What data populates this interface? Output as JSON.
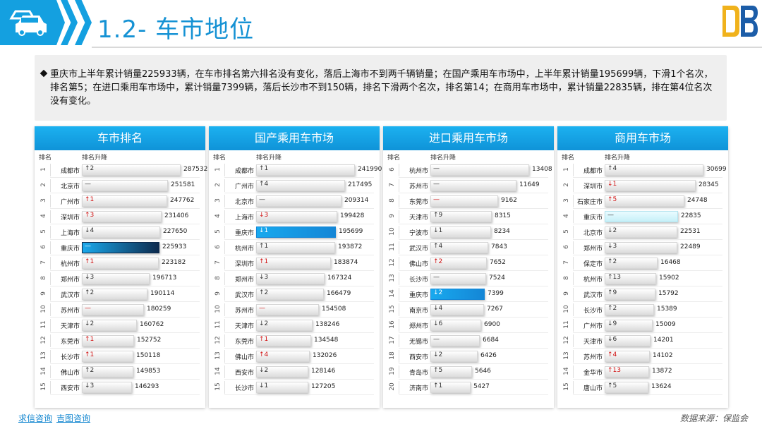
{
  "header": {
    "title": "1.2- 车市地位"
  },
  "summary": "重庆市上半年累计销量225933辆，在车市排名第六排名没有变化，落后上海市不到两千辆销量；在国产乘用车市场中，上半年累计销量195699辆，下滑1个名次，排名第5；在进口乘用车市场中，累计销量7399辆，落后长沙市不到150辆，排名下滑两个名次，排名第14；在商用车市场中，累计销量22835辆，排在第4位名次没有变化。",
  "panels": [
    {
      "title": "车市排名",
      "col_rank": "排名",
      "col_change": "排名升降",
      "max": 287532,
      "rows": [
        {
          "rank": "1",
          "city": "成都市",
          "change": "↑2",
          "dir": "down",
          "value": 287532
        },
        {
          "rank": "2",
          "city": "北京市",
          "change": "—",
          "dir": "flat",
          "value": 251581
        },
        {
          "rank": "3",
          "city": "广州市",
          "change": "↑1",
          "dir": "up",
          "value": 247762
        },
        {
          "rank": "4",
          "city": "深圳市",
          "change": "↑3",
          "dir": "up",
          "value": 231406
        },
        {
          "rank": "5",
          "city": "上海市",
          "change": "↓4",
          "dir": "down",
          "value": 227650
        },
        {
          "rank": "6",
          "city": "重庆市",
          "change": "—",
          "dir": "flat",
          "value": 225933,
          "hl": "dark"
        },
        {
          "rank": "7",
          "city": "杭州市",
          "change": "↑1",
          "dir": "up",
          "value": 223182
        },
        {
          "rank": "8",
          "city": "郑州市",
          "change": "↓3",
          "dir": "down",
          "value": 196713
        },
        {
          "rank": "9",
          "city": "武汉市",
          "change": "↑2",
          "dir": "down",
          "value": 190114
        },
        {
          "rank": "10",
          "city": "苏州市",
          "change": "—",
          "dir": "up",
          "value": 180259
        },
        {
          "rank": "11",
          "city": "天津市",
          "change": "↓2",
          "dir": "down",
          "value": 160762
        },
        {
          "rank": "12",
          "city": "东莞市",
          "change": "↑1",
          "dir": "up",
          "value": 152752
        },
        {
          "rank": "13",
          "city": "长沙市",
          "change": "↑1",
          "dir": "up",
          "value": 150118
        },
        {
          "rank": "14",
          "city": "佛山市",
          "change": "↑2",
          "dir": "down",
          "value": 149853
        },
        {
          "rank": "15",
          "city": "西安市",
          "change": "↓3",
          "dir": "down",
          "value": 146293
        }
      ]
    },
    {
      "title": "国产乘用车市场",
      "col_rank": "排名",
      "col_change": "排名升降",
      "max": 241990,
      "rows": [
        {
          "rank": "1",
          "city": "成都市",
          "change": "↑1",
          "dir": "down",
          "value": 241990
        },
        {
          "rank": "2",
          "city": "广州市",
          "change": "↑4",
          "dir": "down",
          "value": 217495
        },
        {
          "rank": "3",
          "city": "北京市",
          "change": "—",
          "dir": "flat",
          "value": 209314
        },
        {
          "rank": "4",
          "city": "上海市",
          "change": "↓3",
          "dir": "up",
          "value": 199428
        },
        {
          "rank": "5",
          "city": "重庆市",
          "change": "↓1",
          "dir": "flat",
          "value": 195699,
          "hl": "blue"
        },
        {
          "rank": "6",
          "city": "杭州市",
          "change": "↑1",
          "dir": "down",
          "value": 193872
        },
        {
          "rank": "7",
          "city": "深圳市",
          "change": "↑1",
          "dir": "up",
          "value": 183874
        },
        {
          "rank": "8",
          "city": "郑州市",
          "change": "↓3",
          "dir": "down",
          "value": 167324
        },
        {
          "rank": "9",
          "city": "武汉市",
          "change": "↑2",
          "dir": "down",
          "value": 166479
        },
        {
          "rank": "10",
          "city": "苏州市",
          "change": "—",
          "dir": "up",
          "value": 154508
        },
        {
          "rank": "11",
          "city": "天津市",
          "change": "↓2",
          "dir": "down",
          "value": 138246
        },
        {
          "rank": "12",
          "city": "东莞市",
          "change": "↑1",
          "dir": "up",
          "value": 134548
        },
        {
          "rank": "13",
          "city": "佛山市",
          "change": "↑4",
          "dir": "up",
          "value": 132026
        },
        {
          "rank": "14",
          "city": "西安市",
          "change": "↓2",
          "dir": "down",
          "value": 128146
        },
        {
          "rank": "15",
          "city": "长沙市",
          "change": "↓1",
          "dir": "down",
          "value": 127205
        }
      ]
    },
    {
      "title": "进口乘用车市场",
      "col_rank": "排名",
      "col_change": "排名升降",
      "max": 13408,
      "rows": [
        {
          "rank": "6",
          "city": "杭州市",
          "change": "—",
          "dir": "flat",
          "value": 13408
        },
        {
          "rank": "7",
          "city": "苏州市",
          "change": "—",
          "dir": "flat",
          "value": 11649
        },
        {
          "rank": "8",
          "city": "东莞市",
          "change": "—",
          "dir": "up",
          "value": 9162
        },
        {
          "rank": "9",
          "city": "天津市",
          "change": "↑9",
          "dir": "down",
          "value": 8315
        },
        {
          "rank": "10",
          "city": "宁波市",
          "change": "↓1",
          "dir": "down",
          "value": 8234
        },
        {
          "rank": "11",
          "city": "武汉市",
          "change": "↑4",
          "dir": "down",
          "value": 7843
        },
        {
          "rank": "12",
          "city": "佛山市",
          "change": "↑2",
          "dir": "up",
          "value": 7652
        },
        {
          "rank": "13",
          "city": "长沙市",
          "change": "—",
          "dir": "flat",
          "value": 7524
        },
        {
          "rank": "14",
          "city": "重庆市",
          "change": "↓2",
          "dir": "up",
          "value": 7399,
          "hl": "blue"
        },
        {
          "rank": "15",
          "city": "南京市",
          "change": "↓4",
          "dir": "down",
          "value": 7267
        },
        {
          "rank": "16",
          "city": "郑州市",
          "change": "↓6",
          "dir": "down",
          "value": 6900
        },
        {
          "rank": "17",
          "city": "无锡市",
          "change": "—",
          "dir": "flat",
          "value": 6684
        },
        {
          "rank": "18",
          "city": "西安市",
          "change": "↓2",
          "dir": "down",
          "value": 6426
        },
        {
          "rank": "19",
          "city": "青岛市",
          "change": "↑5",
          "dir": "down",
          "value": 5646
        },
        {
          "rank": "20",
          "city": "济南市",
          "change": "↑1",
          "dir": "down",
          "value": 5427
        }
      ]
    },
    {
      "title": "商用车市场",
      "col_rank": "排名",
      "col_change": "排名升降",
      "max": 30699,
      "rows": [
        {
          "rank": "1",
          "city": "成都市",
          "change": "↑4",
          "dir": "down",
          "value": 30699
        },
        {
          "rank": "2",
          "city": "深圳市",
          "change": "↓1",
          "dir": "up",
          "value": 28345
        },
        {
          "rank": "3",
          "city": "石家庄市",
          "change": "↑5",
          "dir": "up",
          "value": 24748
        },
        {
          "rank": "4",
          "city": "重庆市",
          "change": "—",
          "dir": "flat",
          "value": 22835,
          "hl": "light"
        },
        {
          "rank": "5",
          "city": "北京市",
          "change": "↓2",
          "dir": "down",
          "value": 22531
        },
        {
          "rank": "6",
          "city": "郑州市",
          "change": "↓3",
          "dir": "down",
          "value": 22489
        },
        {
          "rank": "7",
          "city": "保定市",
          "change": "↑2",
          "dir": "down",
          "value": 16468
        },
        {
          "rank": "8",
          "city": "杭州市",
          "change": "↑13",
          "dir": "down",
          "value": 15902
        },
        {
          "rank": "9",
          "city": "武汉市",
          "change": "↑9",
          "dir": "down",
          "value": 15792
        },
        {
          "rank": "10",
          "city": "长沙市",
          "change": "↑2",
          "dir": "down",
          "value": 15389
        },
        {
          "rank": "11",
          "city": "广州市",
          "change": "↓9",
          "dir": "down",
          "value": 15009
        },
        {
          "rank": "12",
          "city": "天津市",
          "change": "↓6",
          "dir": "down",
          "value": 14201
        },
        {
          "rank": "13",
          "city": "苏州市",
          "change": "↑4",
          "dir": "up",
          "value": 14102
        },
        {
          "rank": "14",
          "city": "金华市",
          "change": "↑13",
          "dir": "up",
          "value": 13872
        },
        {
          "rank": "15",
          "city": "唐山市",
          "change": "↑5",
          "dir": "down",
          "value": 13624
        }
      ]
    }
  ],
  "footer": {
    "link1": "求信咨询",
    "link2": "吉图咨询",
    "source": "数据来源：保监会"
  },
  "colors": {
    "accent": "#14a0e0",
    "title": "#1592d4",
    "up": "#d01010"
  }
}
